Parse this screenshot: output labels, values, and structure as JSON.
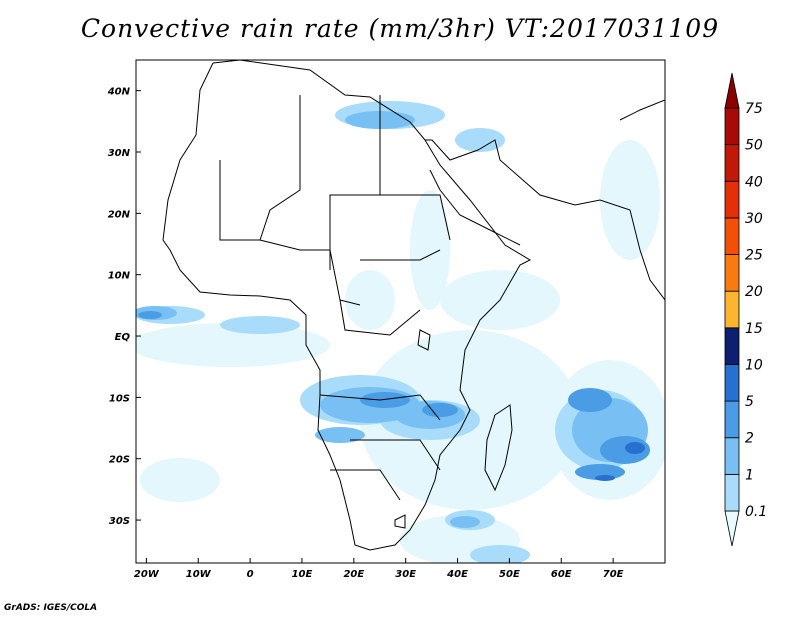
{
  "title": "Convective rain rate (mm/3hr) VT:2017031109",
  "credit": "GrADS: IGES/COLA",
  "map": {
    "lon_range": [
      -22,
      80
    ],
    "lat_range": [
      -37,
      45
    ],
    "x_ticks": [
      "20W",
      "10W",
      "0",
      "10E",
      "20E",
      "30E",
      "40E",
      "50E",
      "60E",
      "70E"
    ],
    "y_ticks": [
      "40N",
      "30N",
      "20N",
      "10N",
      "EQ",
      "10S",
      "20S",
      "30S"
    ]
  },
  "colorbar": {
    "levels": [
      "0.1",
      "1",
      "2",
      "5",
      "10",
      "15",
      "20",
      "25",
      "30",
      "40",
      "50",
      "75"
    ],
    "colors": [
      "#e8fbff",
      "#a8dcfa",
      "#78c0f3",
      "#4a9ce4",
      "#2770d0",
      "#0f1f70",
      "#fbb52f",
      "#fb7a10",
      "#f24f08",
      "#e42f08",
      "#c21808",
      "#a80a08",
      "#8a0000"
    ]
  }
}
